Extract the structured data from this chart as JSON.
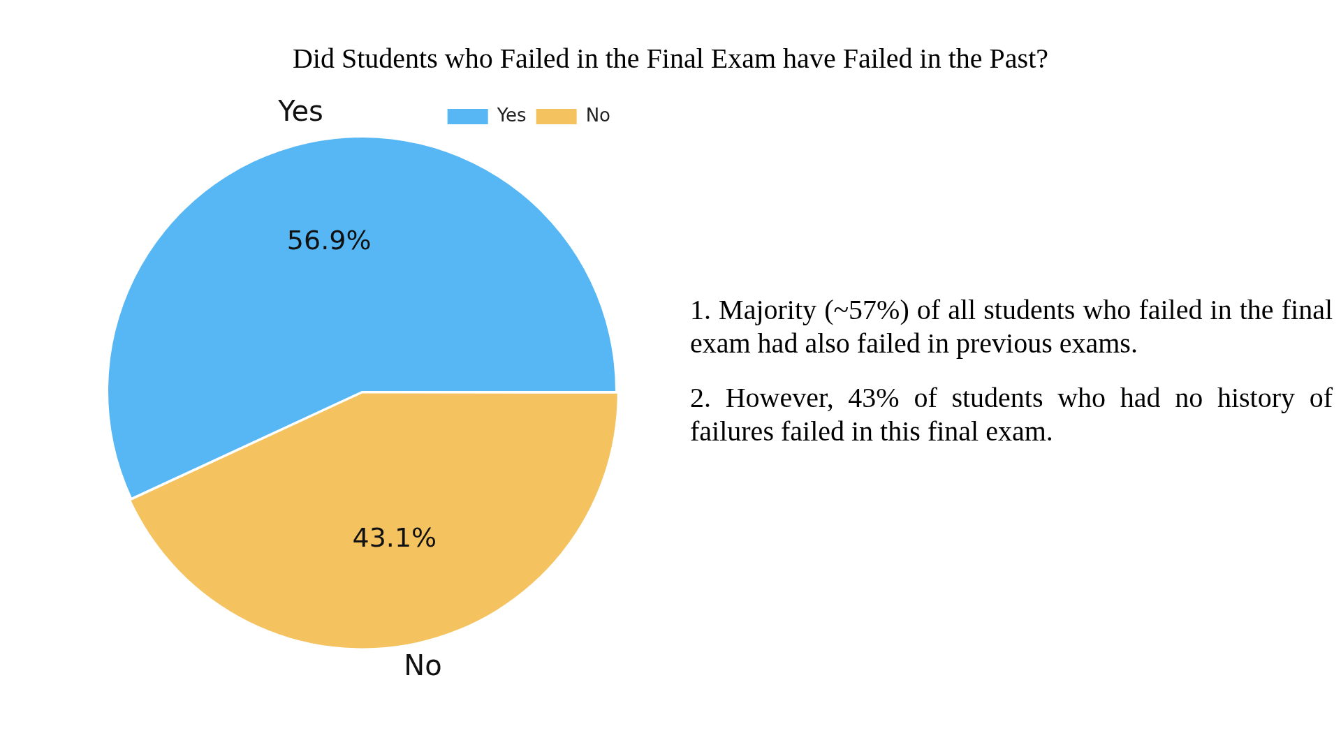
{
  "chart_data": {
    "type": "pie",
    "title": "Did Students who Failed in the Final Exam have Failed in the Past?",
    "categories": [
      "Yes",
      "No"
    ],
    "values": [
      56.9,
      43.1
    ],
    "colors": [
      "#56b7f4",
      "#f4c25f"
    ],
    "value_labels": [
      "56.9%",
      "43.1%"
    ],
    "legend": "top right",
    "annotations": [
      "1. Majority (~57%) of all students who failed in the final exam had also failed in previous exams.",
      "2. However, 43% of students who had no history of failures failed in this final exam."
    ]
  }
}
